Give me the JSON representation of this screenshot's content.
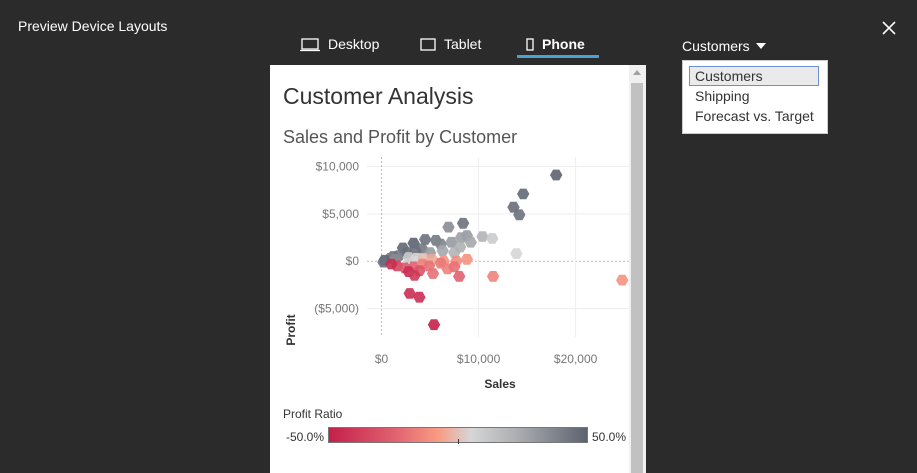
{
  "window": {
    "title": "Preview Device Layouts"
  },
  "tabs": [
    {
      "label": "Desktop",
      "icon": "laptop-icon"
    },
    {
      "label": "Tablet",
      "icon": "tablet-icon"
    },
    {
      "label": "Phone",
      "icon": "phone-icon",
      "active": true
    }
  ],
  "dropdown": {
    "selected": "Customers",
    "options": [
      "Customers",
      "Shipping",
      "Forecast vs. Target"
    ]
  },
  "dashboard": {
    "title": "Customer Analysis",
    "chart_title": "Sales and Profit by Customer"
  },
  "legend": {
    "title": "Profit Ratio",
    "min_label": "-50.0%",
    "max_label": "50.0%"
  },
  "colors": {
    "accent": "#4aa0cf",
    "negative": "#c4204a",
    "positive": "#5c6370",
    "background": "#2b2b2b"
  },
  "chart_data": {
    "type": "scatter",
    "title": "Sales and Profit by Customer",
    "xlabel": "Sales",
    "ylabel": "Profit",
    "xlim": [
      -1500,
      25500
    ],
    "ylim": [
      -8000,
      11000
    ],
    "x_ticks": [
      0,
      10000,
      20000
    ],
    "x_tick_labels": [
      "$0",
      "$10,000",
      "$20,000"
    ],
    "y_ticks": [
      10000,
      5000,
      0,
      -5000
    ],
    "y_tick_labels": [
      "$10,000",
      "$5,000",
      "$0",
      "($5,000)"
    ],
    "points": [
      {
        "x": 18000,
        "y": 9100,
        "ratio": 0.5
      },
      {
        "x": 14600,
        "y": 7100,
        "ratio": 0.48
      },
      {
        "x": 13600,
        "y": 5700,
        "ratio": 0.46
      },
      {
        "x": 14200,
        "y": 4900,
        "ratio": 0.45
      },
      {
        "x": 8400,
        "y": 4000,
        "ratio": 0.45
      },
      {
        "x": 6900,
        "y": 3600,
        "ratio": 0.35
      },
      {
        "x": 8800,
        "y": 2700,
        "ratio": 0.3
      },
      {
        "x": 10400,
        "y": 2600,
        "ratio": 0.2
      },
      {
        "x": 11400,
        "y": 2400,
        "ratio": 0.1
      },
      {
        "x": 13900,
        "y": 800,
        "ratio": 0.05
      },
      {
        "x": 4500,
        "y": 2300,
        "ratio": 0.45
      },
      {
        "x": 5600,
        "y": 2200,
        "ratio": 0.42
      },
      {
        "x": 6100,
        "y": 1800,
        "ratio": 0.38
      },
      {
        "x": 7200,
        "y": 2000,
        "ratio": 0.3
      },
      {
        "x": 8200,
        "y": 2500,
        "ratio": 0.28
      },
      {
        "x": 9200,
        "y": 2000,
        "ratio": 0.25
      },
      {
        "x": 3300,
        "y": 1900,
        "ratio": 0.5
      },
      {
        "x": 4200,
        "y": 1300,
        "ratio": 0.42
      },
      {
        "x": 3500,
        "y": 1100,
        "ratio": 0.45
      },
      {
        "x": 5000,
        "y": 900,
        "ratio": 0.3
      },
      {
        "x": 6300,
        "y": 1100,
        "ratio": 0.25
      },
      {
        "x": 7500,
        "y": 900,
        "ratio": 0.2
      },
      {
        "x": 8100,
        "y": 1500,
        "ratio": 0.22
      },
      {
        "x": 2200,
        "y": 1400,
        "ratio": 0.48
      },
      {
        "x": 2600,
        "y": 900,
        "ratio": 0.46
      },
      {
        "x": 1800,
        "y": 600,
        "ratio": 0.42
      },
      {
        "x": 1200,
        "y": 500,
        "ratio": 0.45
      },
      {
        "x": 900,
        "y": 300,
        "ratio": 0.4
      },
      {
        "x": 300,
        "y": 100,
        "ratio": 0.5
      },
      {
        "x": 200,
        "y": -100,
        "ratio": 0.45
      },
      {
        "x": 1400,
        "y": 200,
        "ratio": 0.35
      },
      {
        "x": 2800,
        "y": 400,
        "ratio": 0.1
      },
      {
        "x": 3600,
        "y": 300,
        "ratio": 0.05
      },
      {
        "x": 4300,
        "y": 300,
        "ratio": 0.0
      },
      {
        "x": 5200,
        "y": 200,
        "ratio": -0.05
      },
      {
        "x": 6400,
        "y": 0,
        "ratio": -0.1
      },
      {
        "x": 7700,
        "y": 0,
        "ratio": -0.12
      },
      {
        "x": 8800,
        "y": 200,
        "ratio": -0.1
      },
      {
        "x": 1600,
        "y": -500,
        "ratio": -0.35
      },
      {
        "x": 2400,
        "y": -700,
        "ratio": -0.3
      },
      {
        "x": 3300,
        "y": -600,
        "ratio": -0.25
      },
      {
        "x": 4200,
        "y": -300,
        "ratio": -0.15
      },
      {
        "x": 4900,
        "y": -500,
        "ratio": -0.2
      },
      {
        "x": 6100,
        "y": -200,
        "ratio": -0.18
      },
      {
        "x": 6800,
        "y": -800,
        "ratio": -0.15
      },
      {
        "x": 7500,
        "y": -600,
        "ratio": -0.2
      },
      {
        "x": 3900,
        "y": -1000,
        "ratio": -0.3
      },
      {
        "x": 5300,
        "y": -1300,
        "ratio": -0.2
      },
      {
        "x": 8000,
        "y": -1600,
        "ratio": -0.25
      },
      {
        "x": 11500,
        "y": -1600,
        "ratio": -0.15
      },
      {
        "x": 2800,
        "y": -1100,
        "ratio": -0.45
      },
      {
        "x": 3400,
        "y": -1500,
        "ratio": -0.4
      },
      {
        "x": 1000,
        "y": -300,
        "ratio": -0.45
      },
      {
        "x": 2900,
        "y": -3400,
        "ratio": -0.45
      },
      {
        "x": 3900,
        "y": -3800,
        "ratio": -0.45
      },
      {
        "x": 5400,
        "y": -6700,
        "ratio": -0.5
      },
      {
        "x": 24800,
        "y": -2000,
        "ratio": -0.1
      }
    ]
  }
}
